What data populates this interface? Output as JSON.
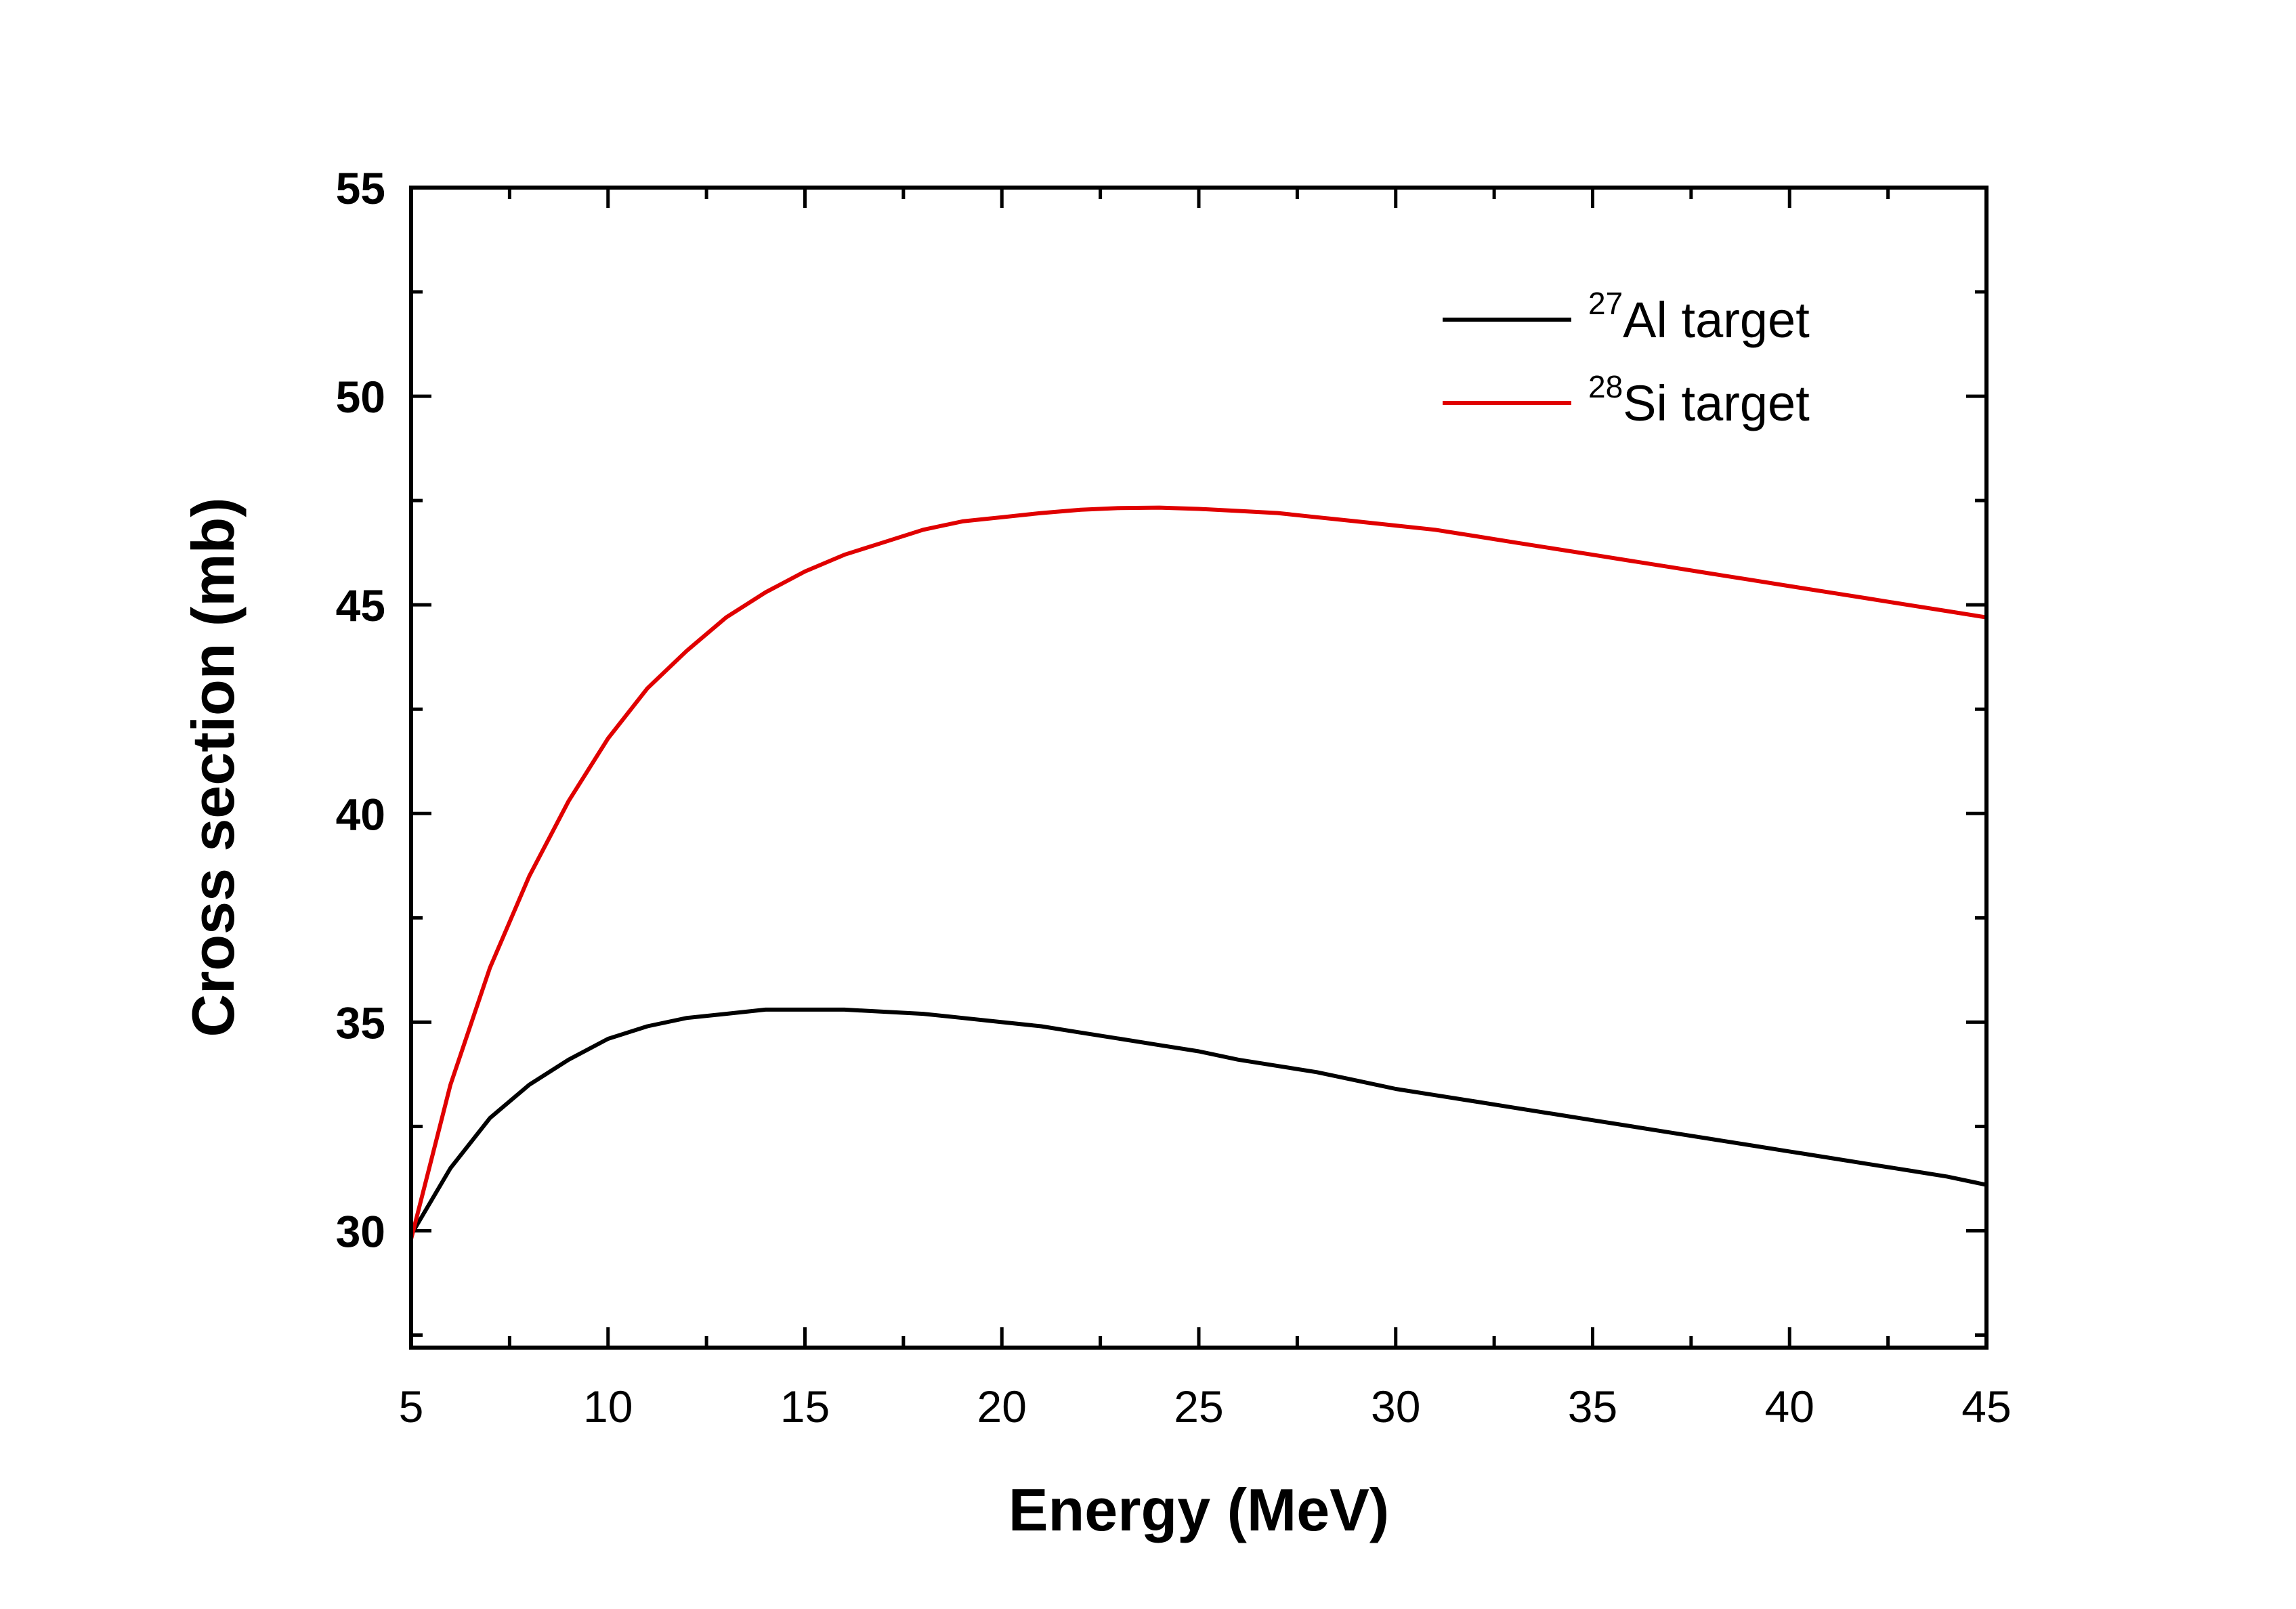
{
  "chart_data": {
    "type": "line",
    "title": "",
    "xlabel": "Energy (MeV)",
    "ylabel": "Cross section (mb)",
    "xlim": [
      5,
      45
    ],
    "ylim": [
      27.2,
      55
    ],
    "x_ticks": [
      5,
      10,
      15,
      20,
      25,
      30,
      35,
      40,
      45
    ],
    "y_ticks": [
      30,
      35,
      40,
      45,
      50,
      55
    ],
    "grid": false,
    "legend_position": "top-right",
    "x": [
      5,
      6,
      7,
      8,
      9,
      10,
      11,
      12,
      13,
      14,
      15,
      16,
      17,
      18,
      19,
      20,
      21,
      22,
      23,
      24,
      25,
      26,
      27,
      28,
      29,
      30,
      31,
      32,
      33,
      34,
      35,
      36,
      37,
      38,
      39,
      40,
      41,
      42,
      43,
      44,
      45
    ],
    "series": [
      {
        "name": "Al target",
        "superscript": "27",
        "color": "#000000",
        "values": [
          29.9,
          31.5,
          32.7,
          33.5,
          34.1,
          34.6,
          34.9,
          35.1,
          35.2,
          35.3,
          35.3,
          35.3,
          35.25,
          35.2,
          35.1,
          35.0,
          34.9,
          34.75,
          34.6,
          34.45,
          34.3,
          34.1,
          33.95,
          33.8,
          33.6,
          33.4,
          33.25,
          33.1,
          32.95,
          32.8,
          32.65,
          32.5,
          32.35,
          32.2,
          32.05,
          31.9,
          31.75,
          31.6,
          31.45,
          31.3,
          31.1
        ]
      },
      {
        "name": "Si target",
        "superscript": "28",
        "color": "#e00000",
        "values": [
          29.8,
          33.5,
          36.3,
          38.5,
          40.3,
          41.8,
          43.0,
          43.9,
          44.7,
          45.3,
          45.8,
          46.2,
          46.5,
          46.8,
          47.0,
          47.1,
          47.2,
          47.28,
          47.32,
          47.33,
          47.3,
          47.25,
          47.2,
          47.1,
          47.0,
          46.9,
          46.8,
          46.65,
          46.5,
          46.35,
          46.2,
          46.05,
          45.9,
          45.75,
          45.6,
          45.45,
          45.3,
          45.15,
          45.0,
          44.85,
          44.7
        ]
      }
    ]
  }
}
